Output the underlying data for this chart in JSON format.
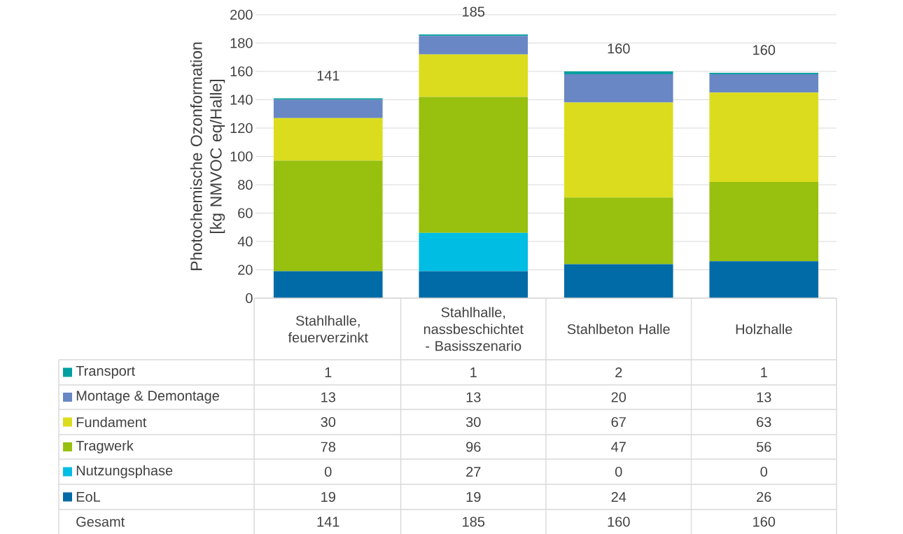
{
  "chart_data": {
    "type": "bar",
    "stacked": true,
    "ylabel": "Photochemische Ozonformation [kg NMVOC eq/Halle]",
    "categories": [
      "Stahlhalle, feuerverzinkt",
      "Stahlhalle, nassbeschichtet - Basisszenario",
      "Stahlbeton Halle",
      "Holzhalle"
    ],
    "series": [
      {
        "name": "EoL",
        "color": "#006ba6",
        "values": [
          19,
          19,
          24,
          26
        ]
      },
      {
        "name": "Nutzungsphase",
        "color": "#00bde3",
        "values": [
          0,
          27,
          0,
          0
        ]
      },
      {
        "name": "Tragwerk",
        "color": "#97c00f",
        "values": [
          78,
          96,
          47,
          56
        ]
      },
      {
        "name": "Fundament",
        "color": "#dcdc1e",
        "values": [
          30,
          30,
          67,
          63
        ]
      },
      {
        "name": "Montage & Demontage",
        "color": "#6887c4",
        "values": [
          13,
          13,
          20,
          13
        ]
      },
      {
        "name": "Transport",
        "color": "#00a0a0",
        "values": [
          1,
          1,
          2,
          1
        ]
      }
    ],
    "ylim": [
      0,
      200
    ],
    "yticks": [
      0,
      20,
      40,
      60,
      80,
      100,
      120,
      140,
      160,
      180,
      200
    ],
    "grid": "y",
    "legend": "bottom",
    "data_labels": true,
    "totals": [
      "141",
      "185",
      "160",
      "160"
    ],
    "annotations": [
      "Gesamt"
    ]
  }
}
